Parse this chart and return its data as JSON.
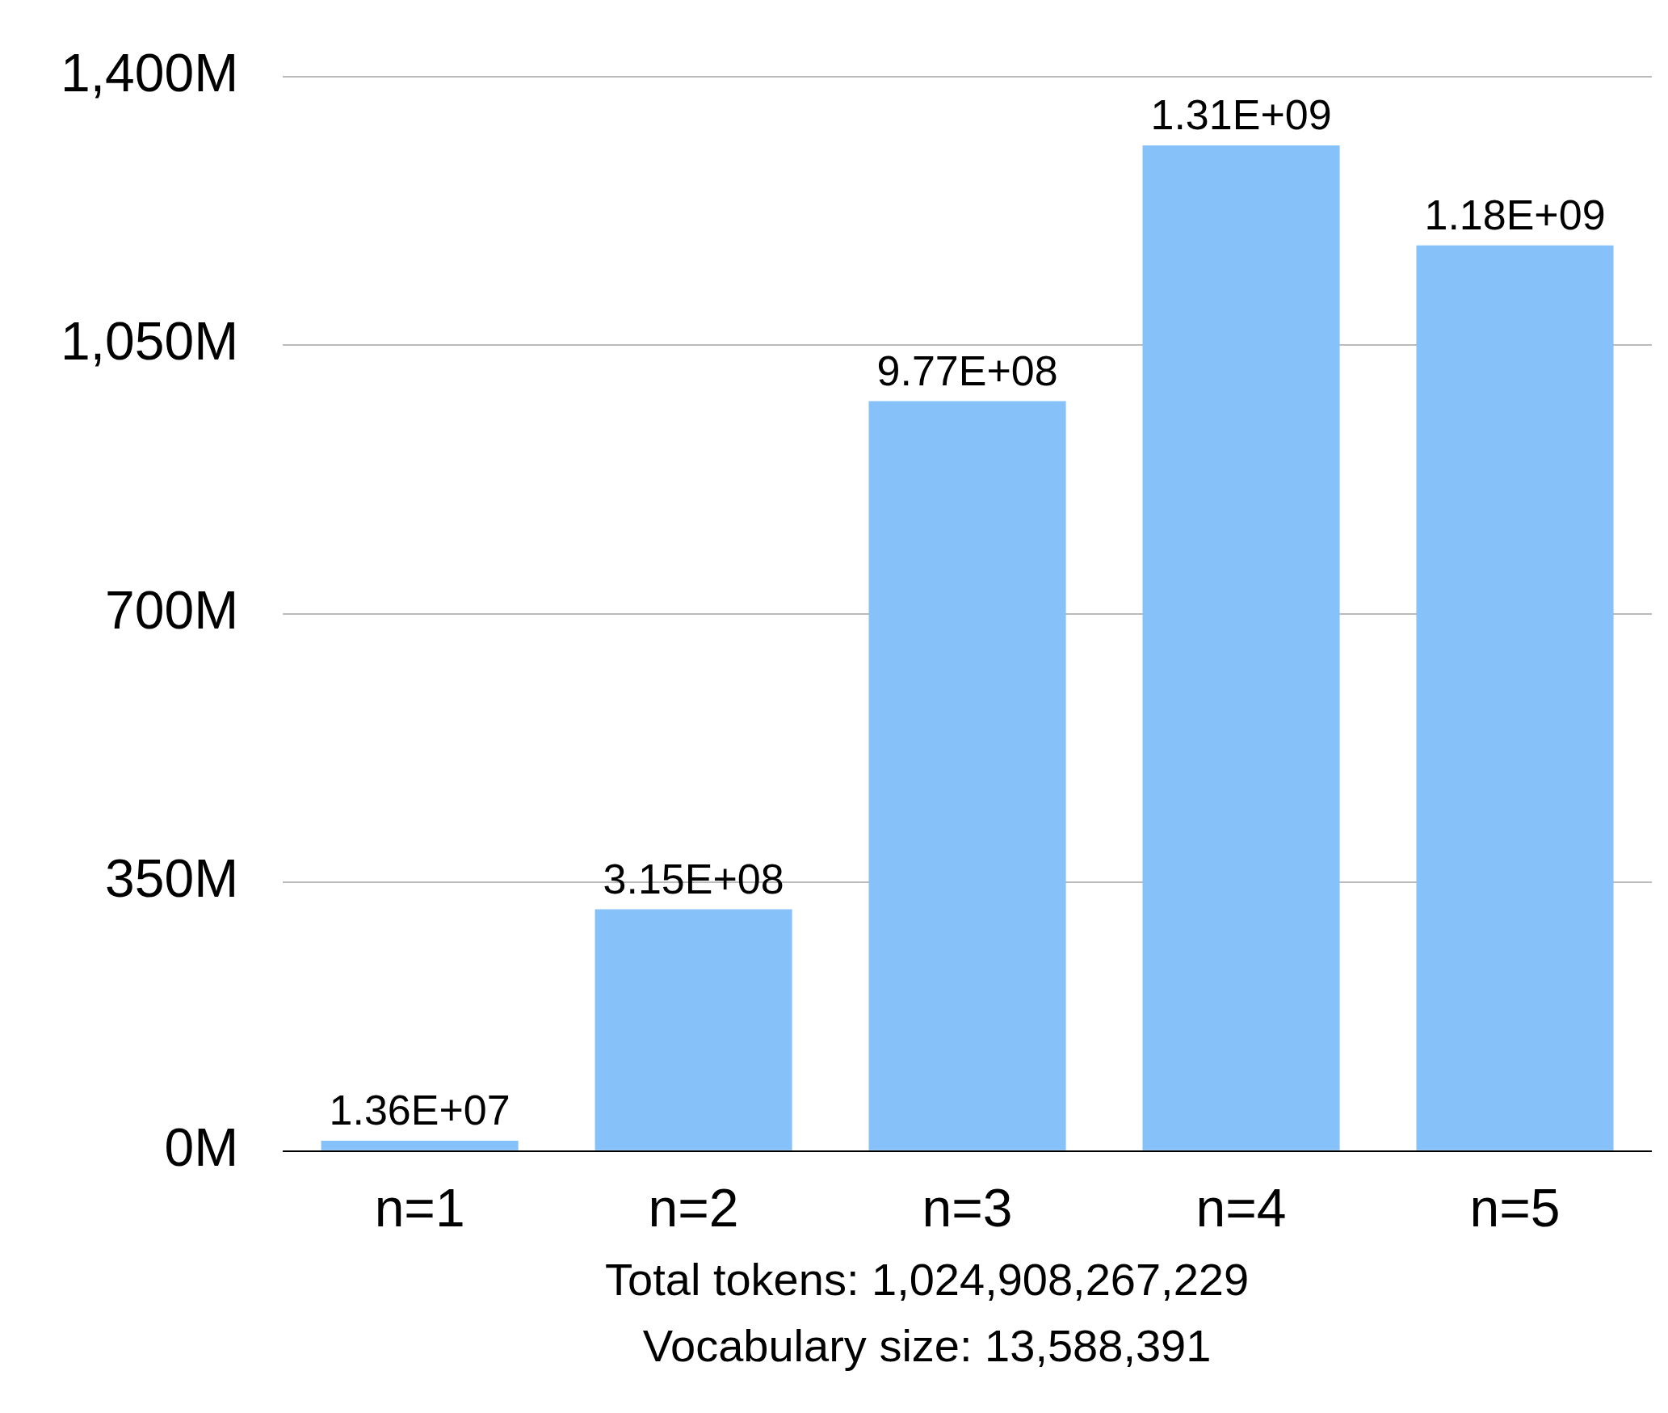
{
  "chart_data": {
    "type": "bar",
    "categories": [
      "n=1",
      "n=2",
      "n=3",
      "n=4",
      "n=5"
    ],
    "values": [
      13600000,
      315000000,
      977000000,
      1310000000,
      1180000000
    ],
    "value_labels": [
      "1.36E+07",
      "3.15E+08",
      "9.77E+08",
      "1.31E+09",
      "1.18E+09"
    ],
    "color": "#87c1f9",
    "ylim": [
      0,
      1400000000
    ],
    "yticks": [
      {
        "value": 0,
        "label": "0M"
      },
      {
        "value": 350000000,
        "label": "350M"
      },
      {
        "value": 700000000,
        "label": "700M"
      },
      {
        "value": 1050000000,
        "label": "1,050M"
      },
      {
        "value": 1400000000,
        "label": "1,400M"
      }
    ],
    "grid": "y",
    "legend": false,
    "annotations": [
      "Total tokens: 1,024,908,267,229",
      "Vocabulary size: 13,588,391"
    ]
  }
}
